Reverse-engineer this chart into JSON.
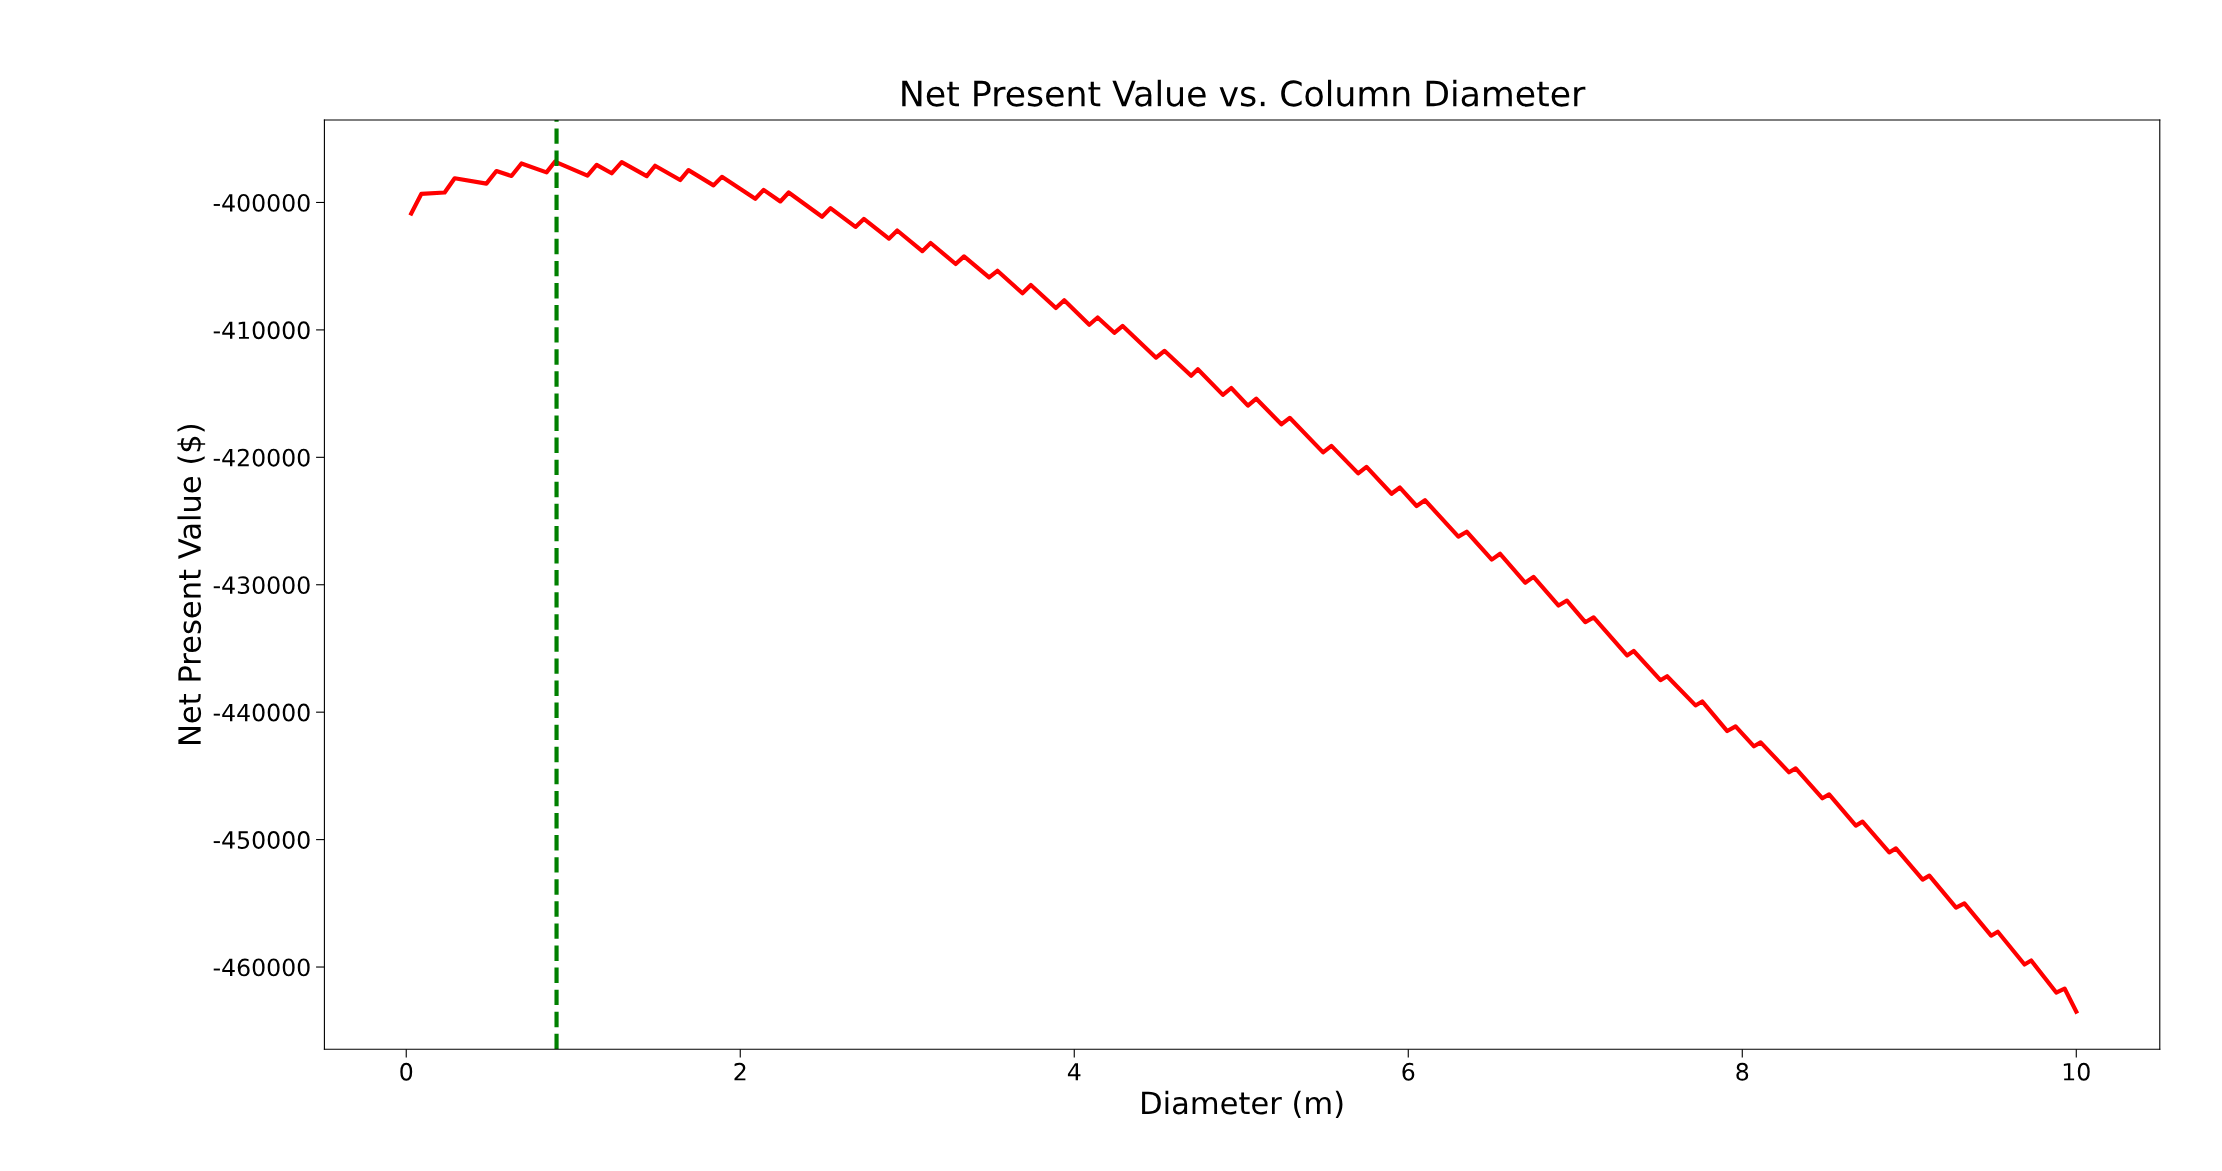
{
  "chart_data": {
    "type": "line",
    "title": "Net Present Value vs. Column Diameter",
    "xlabel": "Diameter (m)",
    "ylabel": "Net Present Value ($)",
    "xlim": [
      -0.49,
      10.5
    ],
    "xticks": [
      0,
      2,
      4,
      6,
      8,
      10
    ],
    "ylim": [
      -466450,
      -393530
    ],
    "yticks": [
      -460000,
      -450000,
      -440000,
      -430000,
      -420000,
      -410000,
      -400000
    ],
    "grid": false,
    "line_style": "solid",
    "marker": "none",
    "series": [
      {
        "color": "#ff0000",
        "x": [
          0.03,
          0.09,
          0.23,
          0.29,
          0.48,
          0.54,
          0.63,
          0.69,
          0.84,
          0.89,
          1.085,
          1.14,
          1.23,
          1.29,
          1.44,
          1.49,
          1.64,
          1.69,
          1.84,
          1.89,
          2.09,
          2.14,
          2.24,
          2.29,
          2.49,
          2.54,
          2.69,
          2.74,
          2.89,
          2.94,
          3.09,
          3.14,
          3.29,
          3.34,
          3.49,
          3.54,
          3.69,
          3.74,
          3.89,
          3.94,
          4.09,
          4.14,
          4.24,
          4.29,
          4.49,
          4.54,
          4.7,
          4.74,
          4.89,
          4.94,
          5.04,
          5.09,
          5.24,
          5.29,
          5.49,
          5.54,
          5.7,
          5.75,
          5.9,
          5.95,
          6.05,
          6.1,
          6.3,
          6.35,
          6.5,
          6.55,
          6.7,
          6.75,
          6.9,
          6.95,
          7.06,
          7.11,
          7.31,
          7.35,
          7.51,
          7.55,
          7.72,
          7.76,
          7.91,
          7.96,
          8.07,
          8.11,
          8.28,
          8.32,
          8.48,
          8.52,
          8.68,
          8.72,
          8.88,
          8.92,
          9.08,
          9.12,
          9.28,
          9.33,
          9.49,
          9.53,
          9.69,
          9.73,
          9.88,
          9.93,
          10.0
        ],
        "values": [
          -400870,
          -399330,
          -399220,
          -398100,
          -398520,
          -397530,
          -397920,
          -396940,
          -397640,
          -396800,
          -397890,
          -397050,
          -397710,
          -396830,
          -397930,
          -397120,
          -398240,
          -397460,
          -398660,
          -397990,
          -399710,
          -399010,
          -399920,
          -399220,
          -401120,
          -400450,
          -401920,
          -401290,
          -402840,
          -402200,
          -403820,
          -403180,
          -404830,
          -404230,
          -405880,
          -405360,
          -407130,
          -406470,
          -408280,
          -407670,
          -409600,
          -409030,
          -410230,
          -409690,
          -412180,
          -411640,
          -413600,
          -413090,
          -415100,
          -414560,
          -415940,
          -415400,
          -417410,
          -416900,
          -419610,
          -419100,
          -421260,
          -420750,
          -422860,
          -422370,
          -423820,
          -423370,
          -426220,
          -425840,
          -428030,
          -427570,
          -429840,
          -429380,
          -431630,
          -431240,
          -432940,
          -432560,
          -435550,
          -435200,
          -437490,
          -437180,
          -439470,
          -439160,
          -441480,
          -441110,
          -442680,
          -442370,
          -444720,
          -444410,
          -446760,
          -446450,
          -448900,
          -448590,
          -451010,
          -450690,
          -453140,
          -452830,
          -455340,
          -455000,
          -457540,
          -457230,
          -459800,
          -459490,
          -462000,
          -461690,
          -463500
        ]
      }
    ],
    "ref_lines": [
      {
        "axis": "x",
        "value": 0.9,
        "color": "#008000",
        "line_style": "dashed"
      }
    ]
  }
}
